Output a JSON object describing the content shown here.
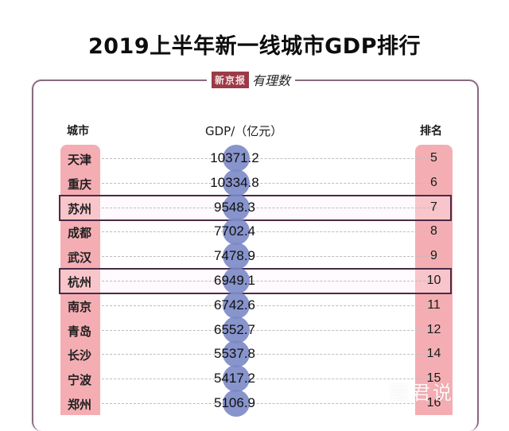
{
  "header": {
    "title": "2019上半年新一线城市GDP排行",
    "logo_box": "新京报",
    "logo_script": "有理数"
  },
  "columns": {
    "city": "城市",
    "gdp": "GDP/（亿元）",
    "rank": "排名"
  },
  "colors": {
    "accent_pink": "#f4aeb3",
    "bubble_blue": "#7b88c6",
    "frame": "#8a6a80",
    "highlight_border": "#4b2a46",
    "logo_red": "#9b3b48"
  },
  "highlighted_cities": [
    "苏州",
    "杭州"
  ],
  "watermark": "圈君说",
  "chart_data": {
    "type": "table",
    "title": "2019上半年新一线城市GDP排行",
    "columns": [
      "城市",
      "GDP/（亿元）",
      "排名"
    ],
    "rows": [
      {
        "city": "天津",
        "gdp": 10371.2,
        "rank": 5
      },
      {
        "city": "重庆",
        "gdp": 10334.8,
        "rank": 6
      },
      {
        "city": "苏州",
        "gdp": 9548.3,
        "rank": 7,
        "highlight": true
      },
      {
        "city": "成都",
        "gdp": 7702.4,
        "rank": 8
      },
      {
        "city": "武汉",
        "gdp": 7478.9,
        "rank": 9
      },
      {
        "city": "杭州",
        "gdp": 6949.1,
        "rank": 10,
        "highlight": true
      },
      {
        "city": "南京",
        "gdp": 6742.6,
        "rank": 11
      },
      {
        "city": "青岛",
        "gdp": 6552.7,
        "rank": 12
      },
      {
        "city": "长沙",
        "gdp": 5537.8,
        "rank": 14
      },
      {
        "city": "宁波",
        "gdp": 5417.2,
        "rank": 15
      },
      {
        "city": "郑州",
        "gdp": 5106.9,
        "rank": 16
      }
    ],
    "unit": "亿元",
    "source": "新京报 有理数"
  }
}
